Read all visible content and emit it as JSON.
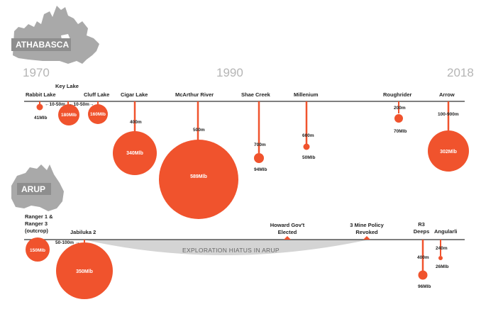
{
  "colors": {
    "accent": "#f0532d",
    "timeline": "#555555",
    "year": "#b5b5b5",
    "map": "#a9a9a9",
    "hiatus": "#d4d4d4"
  },
  "regions": {
    "athabasca": "ATHABASCA",
    "arup": "ARUP"
  },
  "years": {
    "y1970": "1970",
    "y1990": "1990",
    "y2018": "2018"
  },
  "athabasca": {
    "rabbit_lake": {
      "name": "Rabbit Lake",
      "value": "41Mlb"
    },
    "key_lake": {
      "name": "Key Lake",
      "value": "180Mlb"
    },
    "cluff_lake": {
      "name": "Cluff Lake",
      "value": "160Mlb"
    },
    "gap1": "←10-50m",
    "gap2": "←10-50m→",
    "cigar_lake": {
      "name": "Cigar Lake",
      "depth": "400m",
      "value": "340Mlb"
    },
    "mcarthur_river": {
      "name": "McArthur River",
      "depth": "500m",
      "value": "589Mlb"
    },
    "shae_creek": {
      "name": "Shae Creek",
      "depth": "700m",
      "value": "94Mlb"
    },
    "millenium": {
      "name": "Millenium",
      "depth": "600m",
      "value": "50Mlb"
    },
    "roughrider": {
      "name": "Roughrider",
      "depth": "200m",
      "value": "70Mlb"
    },
    "arrow": {
      "name": "Arrow",
      "depth": "100-900m",
      "value": "302Mlb"
    }
  },
  "arup": {
    "ranger": {
      "line1": "Ranger 1 &",
      "line2": "Ranger 3",
      "line3": "(outcrop)",
      "value": "150Mlb"
    },
    "jabiluka": {
      "name": "Jabiluka 2",
      "depth": "50-100m →",
      "value": "350Mlb"
    },
    "howard": {
      "line1": "Howard Gov't",
      "line2": "Elected"
    },
    "mine_policy": {
      "line1": "3 Mine Policy",
      "line2": "Revoked"
    },
    "r3_deeps": {
      "line1": "R3",
      "line2": "Deeps",
      "depth": "400m",
      "value": "96Mlb"
    },
    "angularli": {
      "name": "Angularli",
      "depth": "240m",
      "value": "26Mlb"
    },
    "hiatus": "EXPLORATION HIATUS IN ARUP"
  }
}
